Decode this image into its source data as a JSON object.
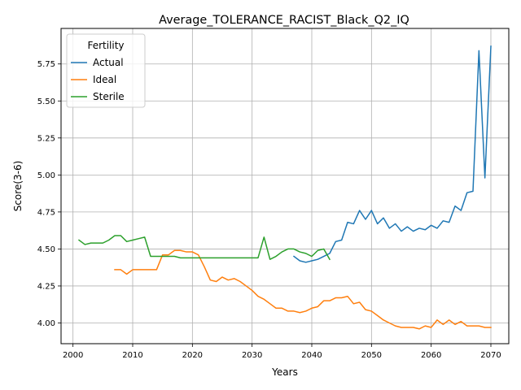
{
  "chart_data": {
    "type": "line",
    "title": "Average_TOLERANCE_RACIST_Black_Q2_IQ",
    "xlabel": "Years",
    "ylabel": "Score(3-6)",
    "xlim": [
      1998,
      2073
    ],
    "ylim": [
      3.86,
      5.99
    ],
    "xticks": [
      2000,
      2010,
      2020,
      2030,
      2040,
      2050,
      2060,
      2070
    ],
    "yticks": [
      4.0,
      4.25,
      4.5,
      4.75,
      5.0,
      5.25,
      5.5,
      5.75
    ],
    "grid": true,
    "legend": {
      "title": "Fertility",
      "placement": "top-left"
    },
    "series": [
      {
        "name": "Actual",
        "color": "#1f77b4",
        "x": [
          2037,
          2038,
          2039,
          2040,
          2041,
          2042,
          2043,
          2044,
          2045,
          2046,
          2047,
          2048,
          2049,
          2050,
          2051,
          2052,
          2053,
          2054,
          2055,
          2056,
          2057,
          2058,
          2059,
          2060,
          2061,
          2062,
          2063,
          2064,
          2065,
          2066,
          2067,
          2068,
          2069,
          2070
        ],
        "y": [
          4.45,
          4.42,
          4.41,
          4.42,
          4.43,
          4.45,
          4.47,
          4.55,
          4.56,
          4.68,
          4.67,
          4.76,
          4.7,
          4.76,
          4.67,
          4.71,
          4.64,
          4.67,
          4.62,
          4.65,
          4.62,
          4.64,
          4.63,
          4.66,
          4.64,
          4.69,
          4.68,
          4.79,
          4.76,
          4.88,
          4.89,
          5.84,
          4.98,
          5.87
        ]
      },
      {
        "name": "Ideal",
        "color": "#ff7f0e",
        "x": [
          2007,
          2008,
          2009,
          2010,
          2011,
          2012,
          2013,
          2014,
          2015,
          2016,
          2017,
          2018,
          2019,
          2020,
          2021,
          2022,
          2023,
          2024,
          2025,
          2026,
          2027,
          2028,
          2029,
          2030,
          2031,
          2032,
          2033,
          2034,
          2035,
          2036,
          2037,
          2038,
          2039,
          2040,
          2041,
          2042,
          2043,
          2044,
          2045,
          2046,
          2047,
          2048,
          2049,
          2050,
          2051,
          2052,
          2053,
          2054,
          2055,
          2056,
          2057,
          2058,
          2059,
          2060,
          2061,
          2062,
          2063,
          2064,
          2065,
          2066,
          2067,
          2068,
          2069,
          2070
        ],
        "y": [
          4.36,
          4.36,
          4.33,
          4.36,
          4.36,
          4.36,
          4.36,
          4.36,
          4.46,
          4.46,
          4.49,
          4.49,
          4.48,
          4.48,
          4.46,
          4.38,
          4.29,
          4.28,
          4.31,
          4.29,
          4.3,
          4.28,
          4.25,
          4.22,
          4.18,
          4.16,
          4.13,
          4.1,
          4.1,
          4.08,
          4.08,
          4.07,
          4.08,
          4.1,
          4.11,
          4.15,
          4.15,
          4.17,
          4.17,
          4.18,
          4.13,
          4.14,
          4.09,
          4.08,
          4.05,
          4.02,
          4.0,
          3.98,
          3.97,
          3.97,
          3.97,
          3.96,
          3.98,
          3.97,
          4.02,
          3.99,
          4.02,
          3.99,
          4.01,
          3.98,
          3.98,
          3.98,
          3.97,
          3.97
        ]
      },
      {
        "name": "Sterile",
        "color": "#2ca02c",
        "x": [
          2001,
          2002,
          2003,
          2004,
          2005,
          2006,
          2007,
          2008,
          2009,
          2010,
          2011,
          2012,
          2013,
          2014,
          2015,
          2016,
          2017,
          2018,
          2019,
          2020,
          2021,
          2022,
          2023,
          2024,
          2025,
          2026,
          2027,
          2028,
          2029,
          2030,
          2031,
          2032,
          2033,
          2034,
          2035,
          2036,
          2037,
          2038,
          2039,
          2040,
          2041,
          2042,
          2043
        ],
        "y": [
          4.56,
          4.53,
          4.54,
          4.54,
          4.54,
          4.56,
          4.59,
          4.59,
          4.55,
          4.56,
          4.57,
          4.58,
          4.45,
          4.45,
          4.45,
          4.45,
          4.45,
          4.44,
          4.44,
          4.44,
          4.44,
          4.44,
          4.44,
          4.44,
          4.44,
          4.44,
          4.44,
          4.44,
          4.44,
          4.44,
          4.44,
          4.58,
          4.43,
          4.45,
          4.48,
          4.5,
          4.5,
          4.48,
          4.47,
          4.45,
          4.49,
          4.5,
          4.43
        ]
      }
    ]
  }
}
